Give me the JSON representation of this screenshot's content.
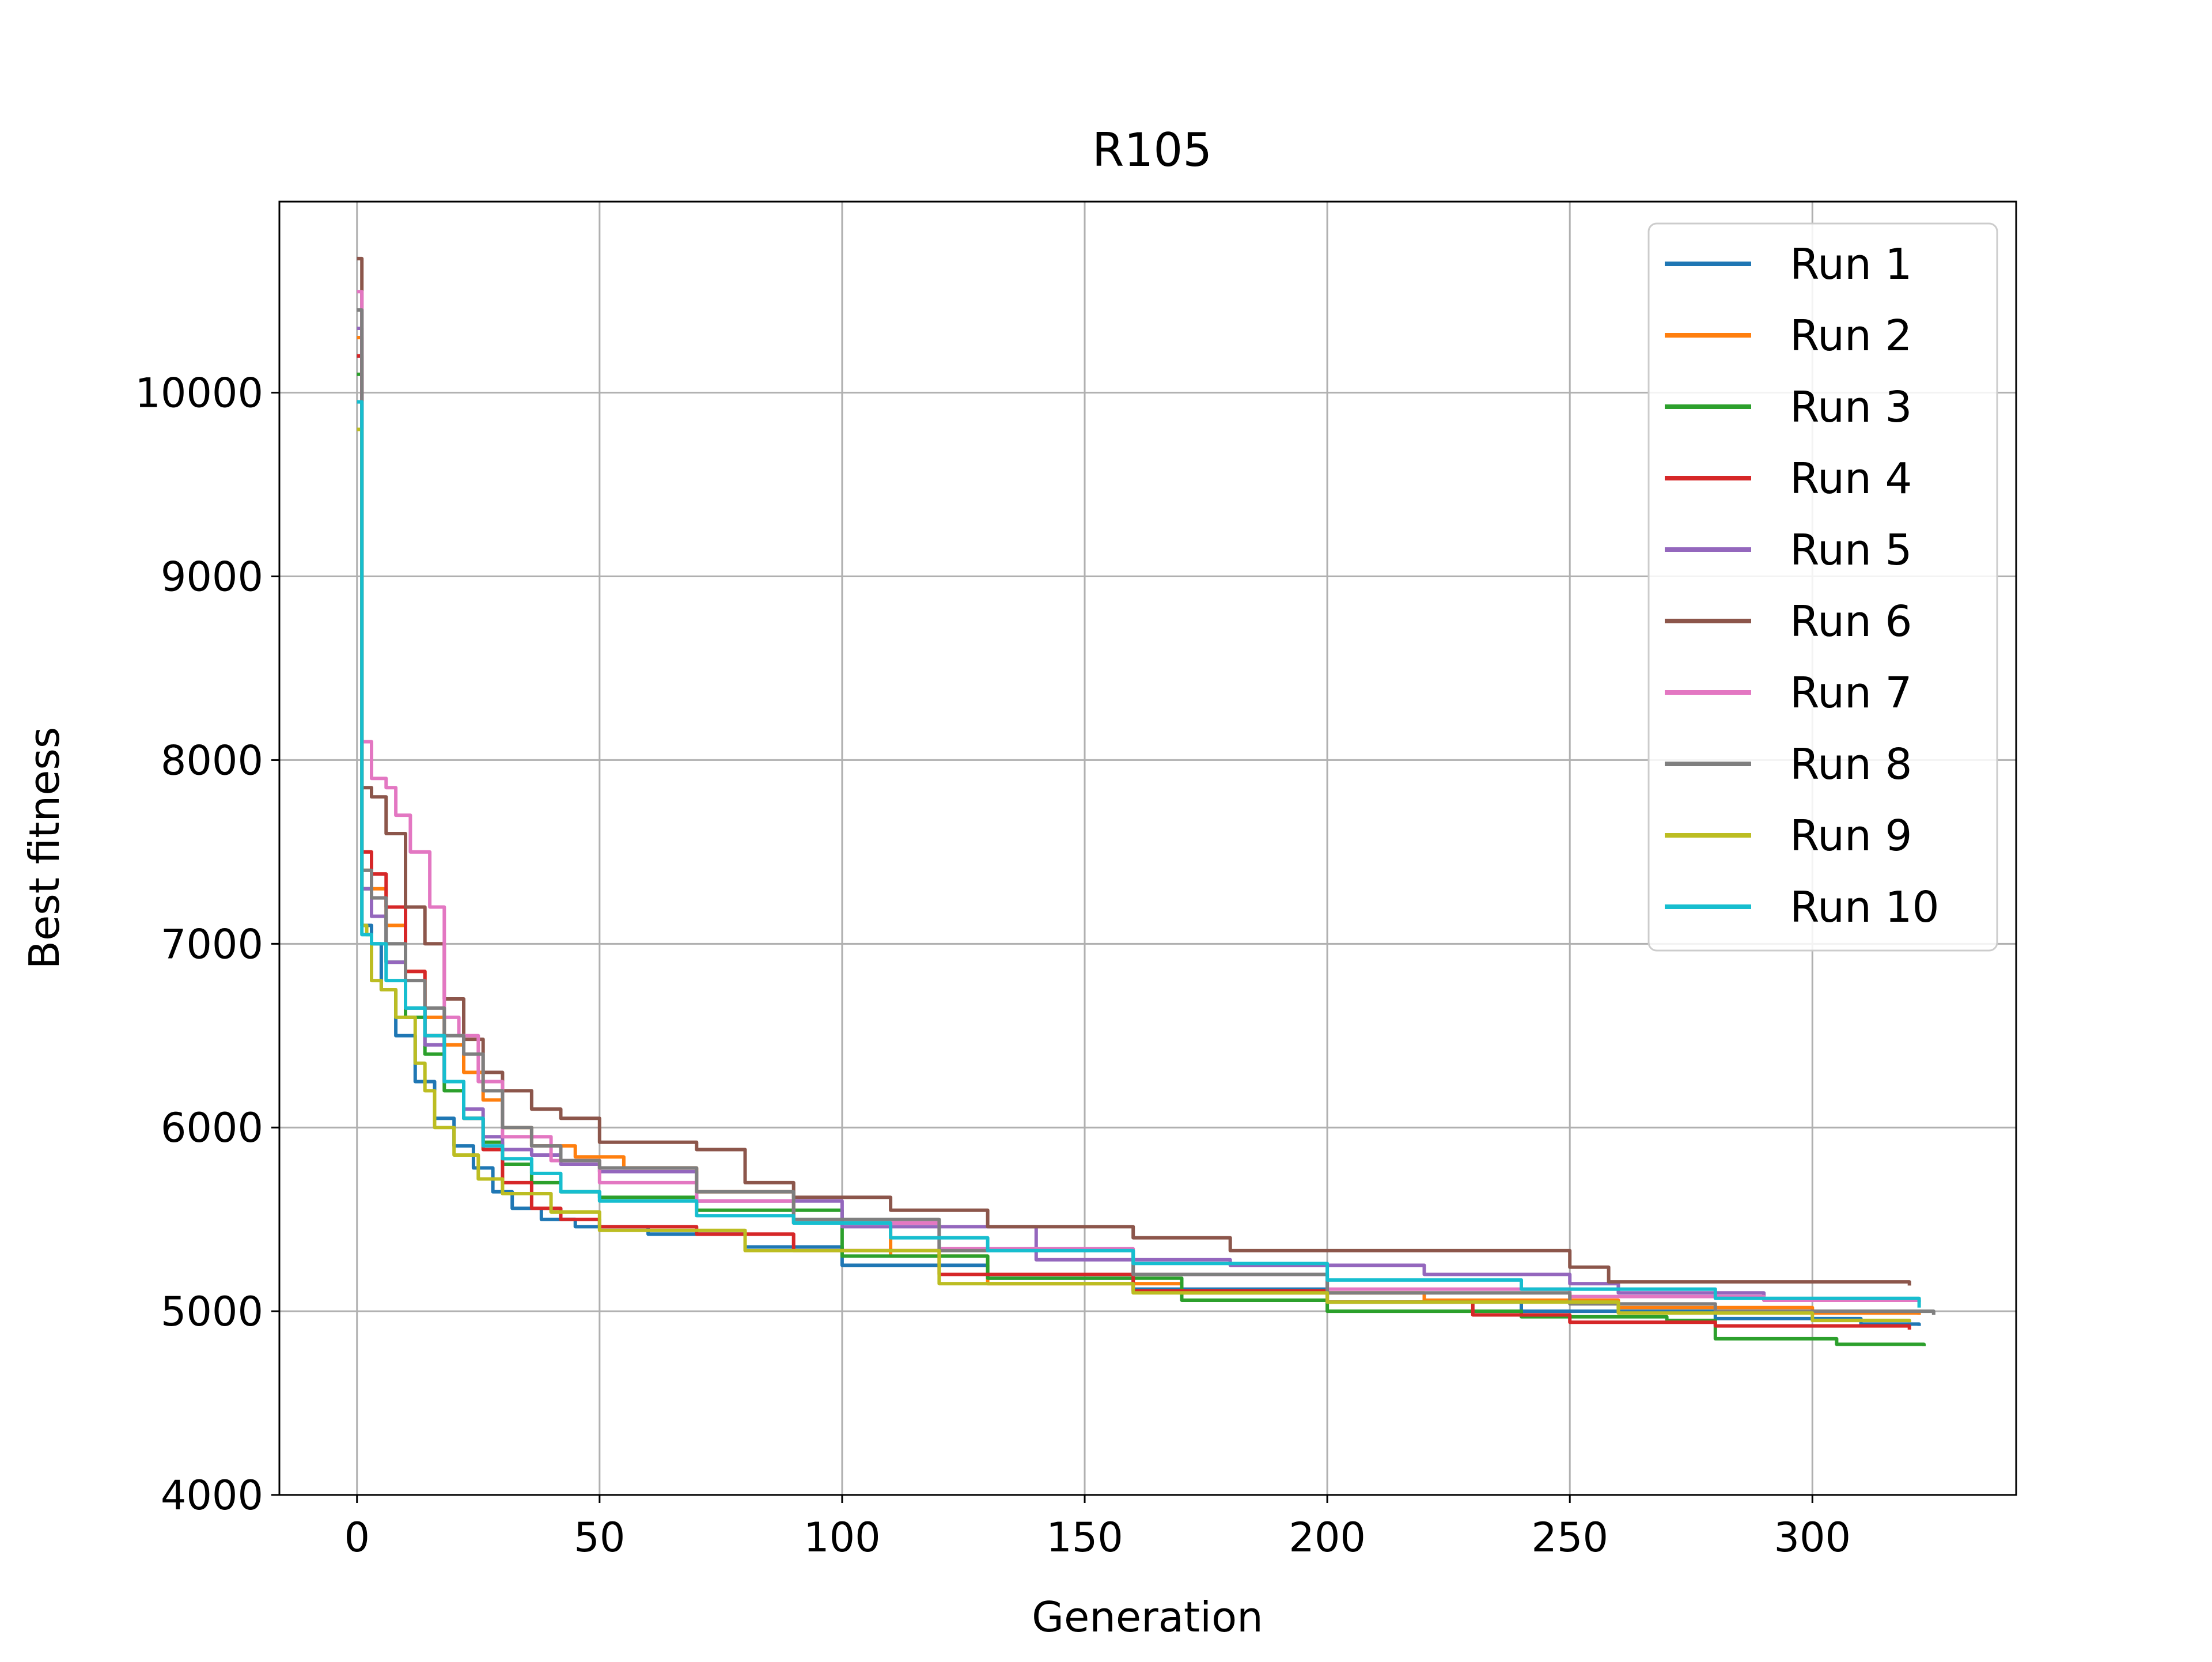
{
  "chart_data": {
    "type": "line",
    "title": "R105",
    "xlabel": "Generation",
    "ylabel": "Best fitness",
    "xlim": [
      -16,
      342
    ],
    "ylim": [
      4000,
      11040
    ],
    "xticks": [
      0,
      50,
      100,
      150,
      200,
      250,
      300
    ],
    "xtick_labels": [
      "0",
      "50",
      "100",
      "150",
      "200",
      "250",
      "300"
    ],
    "yticks": [
      4000,
      5000,
      6000,
      7000,
      8000,
      9000,
      10000
    ],
    "ytick_labels": [
      "4000",
      "5000",
      "6000",
      "7000",
      "8000",
      "9000",
      "10000"
    ],
    "grid": true,
    "legend_position": "top-right",
    "series": [
      {
        "name": "Run 1",
        "color": "#1f77b4",
        "x": [
          0,
          1,
          3,
          5,
          8,
          12,
          16,
          20,
          24,
          28,
          32,
          38,
          45,
          60,
          80,
          100,
          130,
          160,
          200,
          240,
          280,
          310,
          322
        ],
        "y": [
          10200,
          7100,
          7000,
          6750,
          6500,
          6250,
          6050,
          5900,
          5780,
          5650,
          5560,
          5500,
          5460,
          5420,
          5350,
          5250,
          5180,
          5120,
          5050,
          5000,
          4960,
          4930,
          4920
        ]
      },
      {
        "name": "Run 2",
        "color": "#ff7f0e",
        "x": [
          0,
          1,
          3,
          6,
          10,
          14,
          18,
          22,
          26,
          30,
          36,
          45,
          55,
          70,
          90,
          110,
          130,
          170,
          220,
          260,
          300,
          322
        ],
        "y": [
          10300,
          7400,
          7300,
          7100,
          6850,
          6600,
          6450,
          6300,
          6150,
          6000,
          5900,
          5840,
          5780,
          5650,
          5480,
          5300,
          5150,
          5100,
          5060,
          5020,
          4990,
          4980
        ]
      },
      {
        "name": "Run 3",
        "color": "#2ca02c",
        "x": [
          0,
          1,
          3,
          6,
          10,
          14,
          18,
          22,
          26,
          30,
          36,
          42,
          50,
          70,
          100,
          130,
          170,
          200,
          240,
          270,
          280,
          305,
          323
        ],
        "y": [
          10100,
          7300,
          7150,
          6900,
          6600,
          6400,
          6200,
          6050,
          5920,
          5800,
          5700,
          5650,
          5620,
          5550,
          5300,
          5180,
          5060,
          5000,
          4970,
          4950,
          4850,
          4820,
          4810
        ]
      },
      {
        "name": "Run 4",
        "color": "#d62728",
        "x": [
          0,
          1,
          3,
          6,
          10,
          14,
          18,
          22,
          26,
          30,
          36,
          42,
          50,
          70,
          90,
          120,
          160,
          200,
          230,
          250,
          280,
          320
        ],
        "y": [
          10200,
          7500,
          7380,
          7200,
          6850,
          6500,
          6250,
          6050,
          5880,
          5700,
          5560,
          5500,
          5460,
          5420,
          5330,
          5200,
          5110,
          5050,
          4980,
          4940,
          4920,
          4900
        ]
      },
      {
        "name": "Run 5",
        "color": "#9467bd",
        "x": [
          0,
          1,
          3,
          6,
          10,
          14,
          18,
          22,
          26,
          30,
          36,
          42,
          50,
          70,
          100,
          140,
          180,
          220,
          250,
          260,
          290,
          322
        ],
        "y": [
          10350,
          7300,
          7150,
          6900,
          6650,
          6450,
          6250,
          6100,
          5950,
          5880,
          5850,
          5800,
          5760,
          5600,
          5460,
          5280,
          5250,
          5200,
          5150,
          5100,
          5060,
          5050
        ]
      },
      {
        "name": "Run 6",
        "color": "#8c564b",
        "x": [
          0,
          1,
          3,
          6,
          10,
          14,
          18,
          22,
          26,
          30,
          36,
          42,
          50,
          70,
          80,
          90,
          110,
          130,
          160,
          180,
          235,
          250,
          258,
          320
        ],
        "y": [
          10730,
          7850,
          7800,
          7600,
          7200,
          7000,
          6700,
          6480,
          6300,
          6200,
          6100,
          6050,
          5920,
          5880,
          5700,
          5620,
          5550,
          5460,
          5400,
          5330,
          5330,
          5240,
          5160,
          5140
        ]
      },
      {
        "name": "Run 7",
        "color": "#e377c2",
        "x": [
          0,
          1,
          3,
          6,
          8,
          11,
          15,
          18,
          21,
          25,
          30,
          40,
          50,
          70,
          90,
          120,
          160,
          200,
          250,
          290,
          322
        ],
        "y": [
          10550,
          8100,
          7900,
          7850,
          7700,
          7500,
          7200,
          6600,
          6500,
          6250,
          5950,
          5820,
          5700,
          5600,
          5480,
          5340,
          5200,
          5120,
          5080,
          5060,
          5050
        ]
      },
      {
        "name": "Run 8",
        "color": "#7f7f7f",
        "x": [
          0,
          1,
          3,
          6,
          10,
          14,
          18,
          22,
          26,
          30,
          36,
          42,
          50,
          70,
          90,
          120,
          160,
          200,
          250,
          280,
          325
        ],
        "y": [
          10450,
          7400,
          7250,
          7000,
          6800,
          6650,
          6500,
          6400,
          6200,
          6000,
          5900,
          5820,
          5780,
          5650,
          5500,
          5330,
          5200,
          5100,
          5040,
          5000,
          4980
        ]
      },
      {
        "name": "Run 9",
        "color": "#bcbd22",
        "x": [
          0,
          1,
          2,
          3,
          5,
          8,
          12,
          14,
          16,
          20,
          25,
          30,
          40,
          50,
          80,
          120,
          160,
          200,
          260,
          300,
          320
        ],
        "y": [
          9800,
          7100,
          7050,
          6800,
          6750,
          6600,
          6350,
          6200,
          6000,
          5850,
          5720,
          5640,
          5540,
          5440,
          5330,
          5150,
          5100,
          5050,
          4990,
          4950,
          4940
        ]
      },
      {
        "name": "Run 10",
        "color": "#17becf",
        "x": [
          0,
          1,
          3,
          6,
          10,
          14,
          18,
          22,
          26,
          30,
          36,
          42,
          50,
          70,
          90,
          110,
          130,
          160,
          200,
          240,
          280,
          322
        ],
        "y": [
          9950,
          7050,
          7000,
          6800,
          6650,
          6500,
          6250,
          6050,
          5900,
          5830,
          5750,
          5650,
          5600,
          5520,
          5480,
          5400,
          5330,
          5260,
          5170,
          5120,
          5070,
          5020
        ]
      }
    ]
  }
}
